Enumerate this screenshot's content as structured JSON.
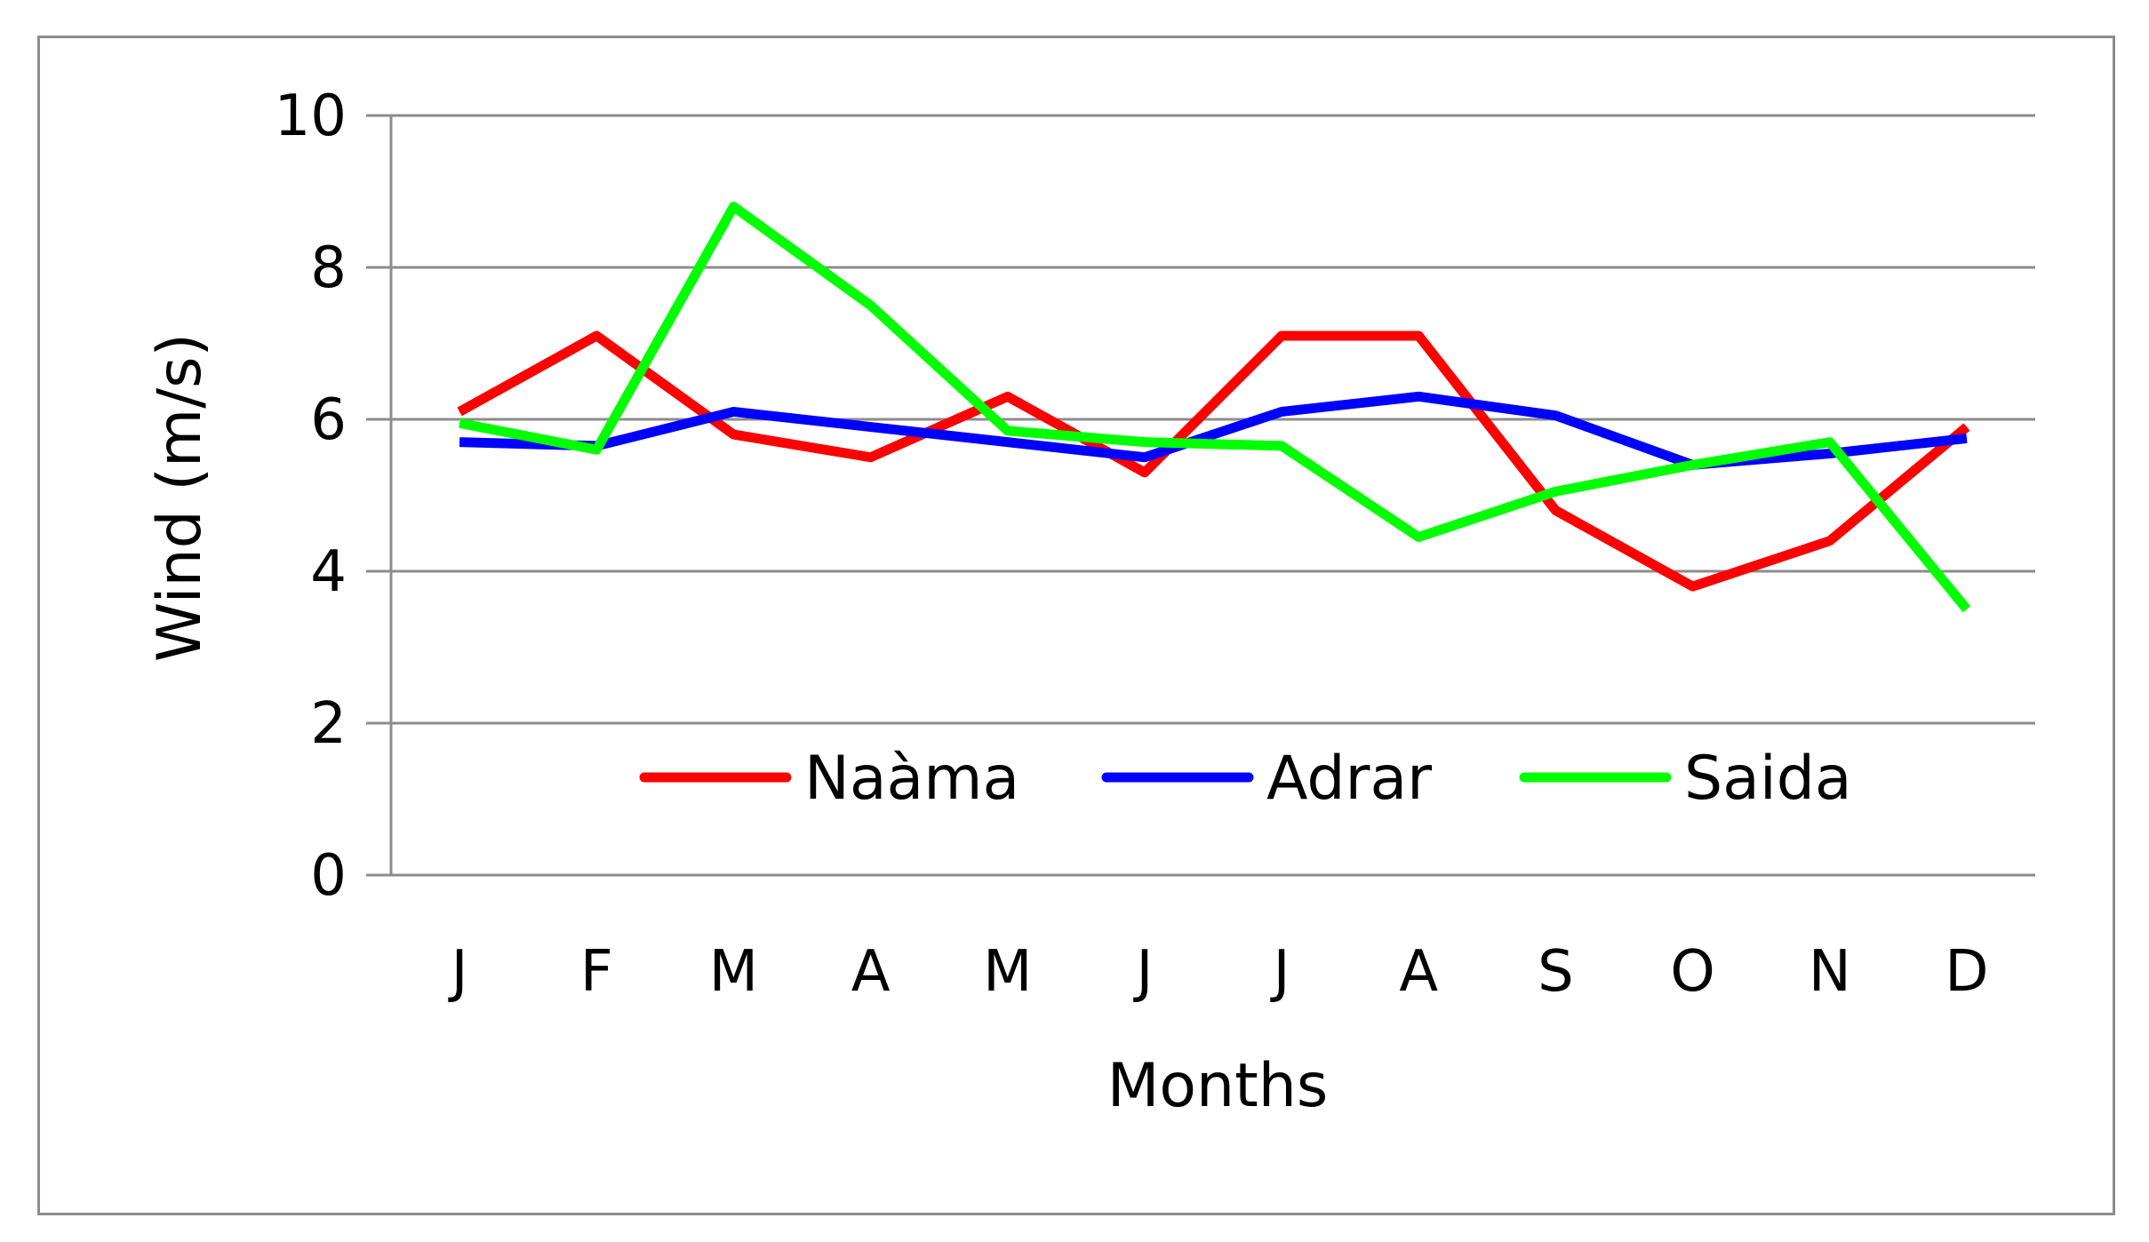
{
  "chart_data": {
    "type": "line",
    "title": "",
    "xlabel": "Months",
    "ylabel": "Wind (m/s)",
    "categories": [
      "J",
      "F",
      "M",
      "A",
      "M",
      "J",
      "J",
      "A",
      "S",
      "O",
      "N",
      "D"
    ],
    "ylim": [
      0,
      10
    ],
    "yticks": [
      "0",
      "2",
      "4",
      "6",
      "8",
      "10"
    ],
    "grid": true,
    "legend_position": "inside-bottom-center",
    "series": [
      {
        "name": "Naàma",
        "color": "#ff0000",
        "values": [
          6.1,
          7.1,
          5.8,
          5.5,
          6.3,
          5.3,
          7.1,
          7.1,
          4.8,
          3.8,
          4.4,
          5.9
        ]
      },
      {
        "name": "Adrar",
        "color": "#0000ff",
        "values": [
          5.7,
          5.65,
          6.1,
          5.9,
          5.7,
          5.5,
          6.1,
          6.3,
          6.05,
          5.4,
          5.55,
          5.75
        ]
      },
      {
        "name": "Saida",
        "color": "#00ff00",
        "values": [
          5.95,
          5.6,
          8.8,
          7.5,
          5.85,
          5.7,
          5.65,
          4.45,
          5.05,
          5.4,
          5.7,
          3.5
        ]
      }
    ]
  }
}
